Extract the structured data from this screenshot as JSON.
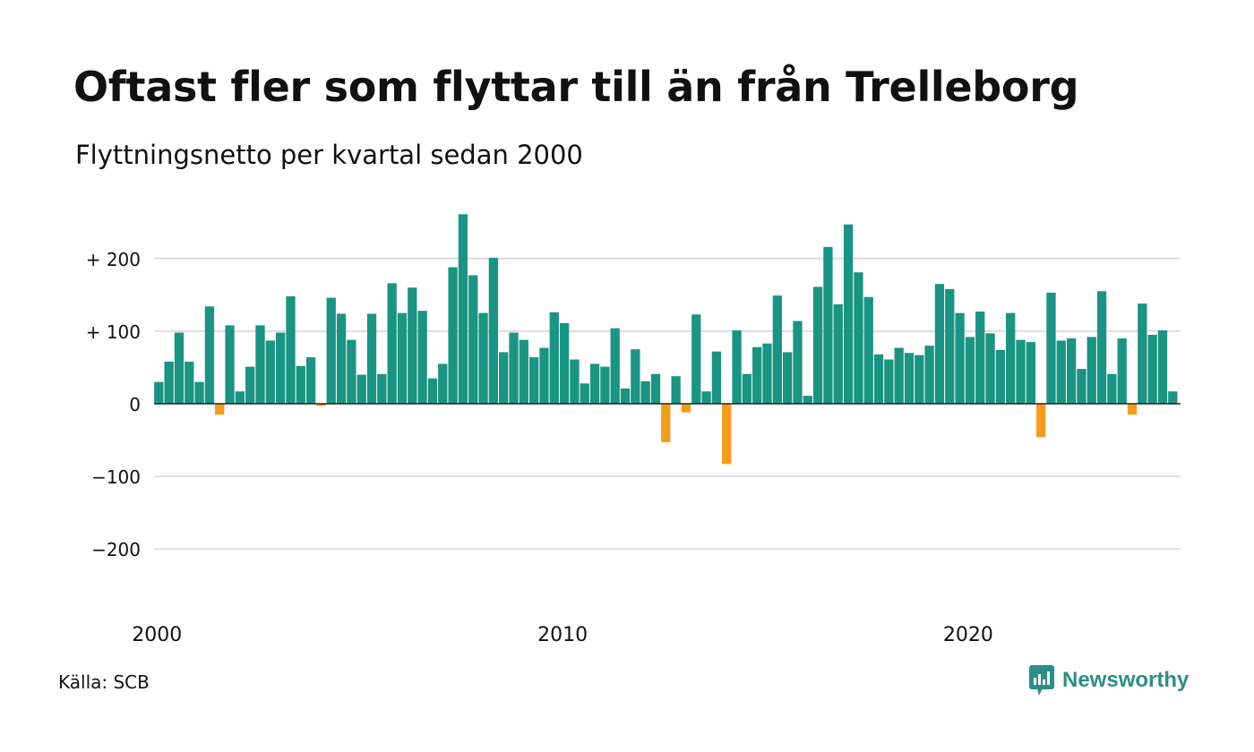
{
  "header": {
    "title": "Oftast fler som flyttar till än från Trelleborg",
    "subtitle": "Flyttningsnetto per kvartal sedan 2000"
  },
  "footer": {
    "source": "Källa: SCB",
    "brand": "Newsworthy",
    "brand_icon": "newsworthy-logo-icon"
  },
  "colors": {
    "positive": "#1a9483",
    "negative": "#f59c1a",
    "grid": "#dddddd",
    "zero_line": "#222222",
    "brand": "#2a8f86"
  },
  "chart_data": {
    "type": "bar",
    "title": "Oftast fler som flyttar till än från Trelleborg",
    "subtitle": "Flyttningsnetto per kvartal sedan 2000",
    "xlabel": "",
    "ylabel": "",
    "ylim": [
      -240,
      265
    ],
    "grid": true,
    "y_ticks": [
      -200,
      -100,
      0,
      100,
      200
    ],
    "y_tick_labels": [
      "−200",
      "−100",
      "0",
      "+ 100",
      "+ 200"
    ],
    "x_ticks": [
      2000,
      2010,
      2020
    ],
    "x_tick_labels": [
      "2000",
      "2010",
      "2020"
    ],
    "x_start_year": 2000,
    "periods_per_year": 4,
    "values": [
      30,
      58,
      98,
      58,
      30,
      134,
      -15,
      108,
      17,
      51,
      108,
      87,
      98,
      148,
      52,
      64,
      -3,
      146,
      124,
      88,
      40,
      124,
      41,
      166,
      125,
      160,
      128,
      35,
      55,
      188,
      261,
      177,
      125,
      201,
      71,
      98,
      88,
      64,
      77,
      126,
      111,
      61,
      28,
      55,
      51,
      104,
      21,
      75,
      31,
      41,
      -53,
      38,
      -12,
      123,
      17,
      72,
      -83,
      101,
      41,
      78,
      83,
      149,
      71,
      114,
      11,
      161,
      216,
      137,
      247,
      181,
      147,
      68,
      61,
      77,
      70,
      67,
      80,
      165,
      158,
      125,
      92,
      127,
      97,
      74,
      125,
      88,
      85,
      -46,
      153,
      87,
      90,
      48,
      92,
      155,
      41,
      90,
      -15,
      138,
      95,
      101,
      17
    ]
  }
}
